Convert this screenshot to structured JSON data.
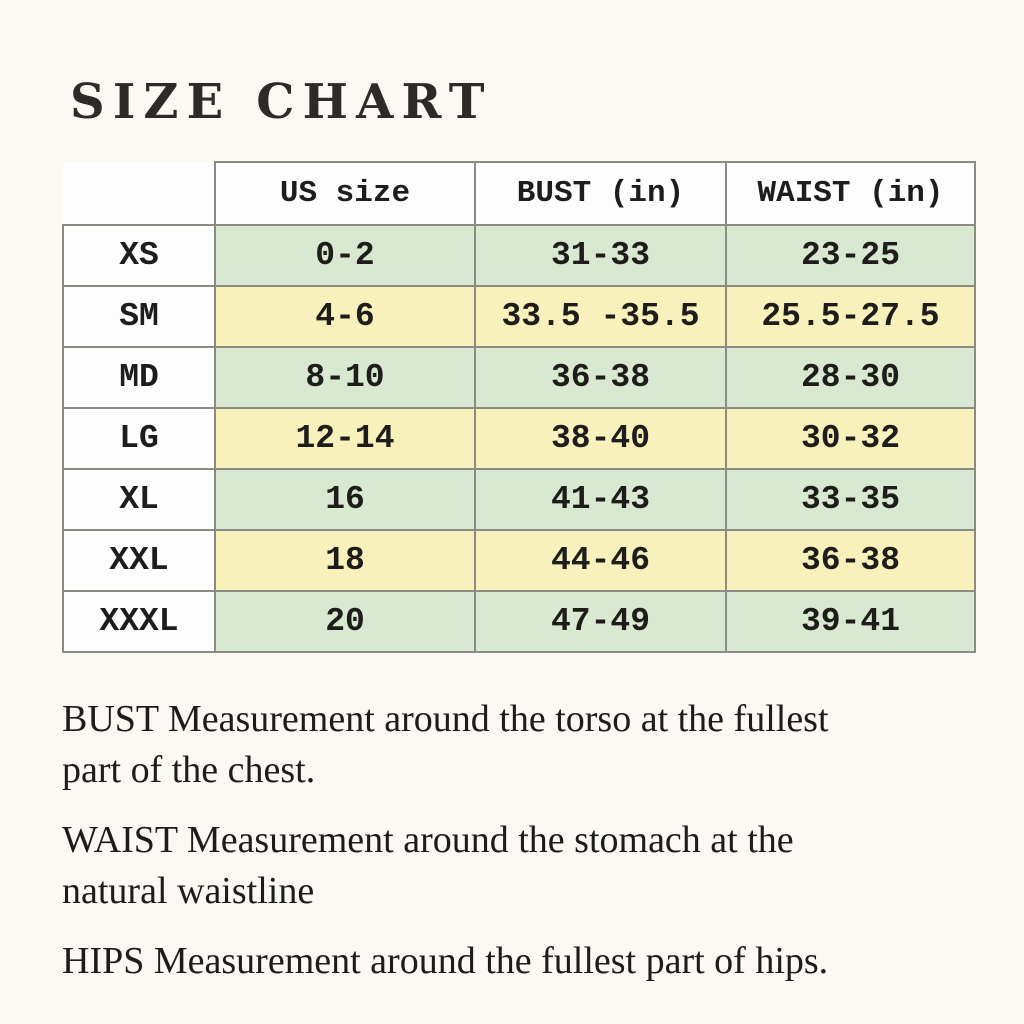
{
  "page": {
    "background_color": "#fbf9f4",
    "text_color": "#1d1c1a"
  },
  "title": "SIZE CHART",
  "table": {
    "headers": [
      "US size",
      "BUST (in)",
      "WAIST (in)"
    ],
    "rows": [
      {
        "size": "XS",
        "us": "0-2",
        "bust": "31-33",
        "waist": "23-25",
        "tint": "green"
      },
      {
        "size": "SM",
        "us": "4-6",
        "bust": "33.5 -35.5",
        "waist": "25.5-27.5",
        "tint": "yellow"
      },
      {
        "size": "MD",
        "us": "8-10",
        "bust": "36-38",
        "waist": "28-30",
        "tint": "green"
      },
      {
        "size": "LG",
        "us": "12-14",
        "bust": "38-40",
        "waist": "30-32",
        "tint": "yellow"
      },
      {
        "size": "XL",
        "us": "16",
        "bust": "41-43",
        "waist": "33-35",
        "tint": "green"
      },
      {
        "size": "XXL",
        "us": "18",
        "bust": "44-46",
        "waist": "36-38",
        "tint": "yellow"
      },
      {
        "size": "XXXL",
        "us": "20",
        "bust": "47-49",
        "waist": "39-41",
        "tint": "green"
      }
    ],
    "colors": {
      "green_row": "#d9e8d0",
      "yellow_row": "#f8f1bb",
      "label_cell": "#fdfdfd",
      "border": "#8b8b83"
    }
  },
  "notes": [
    {
      "lines": [
        "BUST Measurement around the torso at the fullest",
        "part of the chest."
      ]
    },
    {
      "lines": [
        "WAIST Measurement around the stomach at the",
        "natural waistline"
      ]
    },
    {
      "lines": [
        "HIPS Measurement around the fullest part of hips."
      ]
    }
  ]
}
